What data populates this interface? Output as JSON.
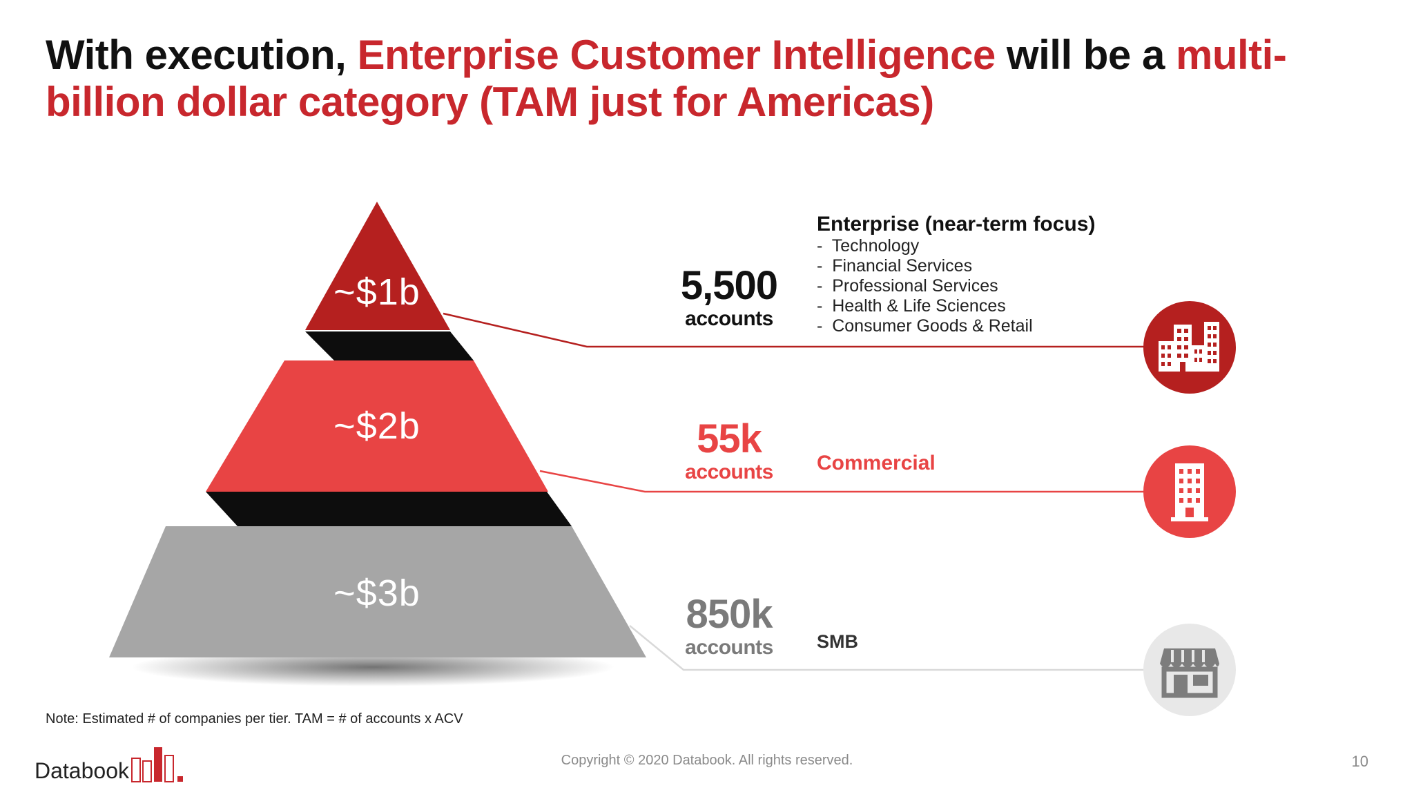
{
  "title": {
    "part1": "With execution, ",
    "part2": "Enterprise Customer Intelligence",
    "part3": " will be a ",
    "part4": "multi-billion dollar category (TAM just for Americas)"
  },
  "tiers": [
    {
      "value": "~$1b",
      "count": "5,500",
      "count_label": "accounts",
      "segment": "Enterprise (near-term focus)",
      "segment_items": [
        "Technology",
        "Financial Services",
        "Professional Services",
        "Health & Life Sciences",
        "Consumer Goods & Retail"
      ],
      "icon": "office-buildings-icon",
      "color": "#b5201f"
    },
    {
      "value": "~$2b",
      "count": "55k",
      "count_label": "accounts",
      "segment": "Commercial",
      "icon": "office-tower-icon",
      "color": "#e84444"
    },
    {
      "value": "~$3b",
      "count": "850k",
      "count_label": "accounts",
      "segment": "SMB",
      "icon": "storefront-icon",
      "color": "#a6a6a6"
    }
  ],
  "footer": {
    "note": "Note: Estimated # of companies per tier. TAM = # of accounts x ACV",
    "logo": "Databook",
    "copyright": "Copyright © 2020 Databook. All rights reserved.",
    "page_number": "10"
  }
}
